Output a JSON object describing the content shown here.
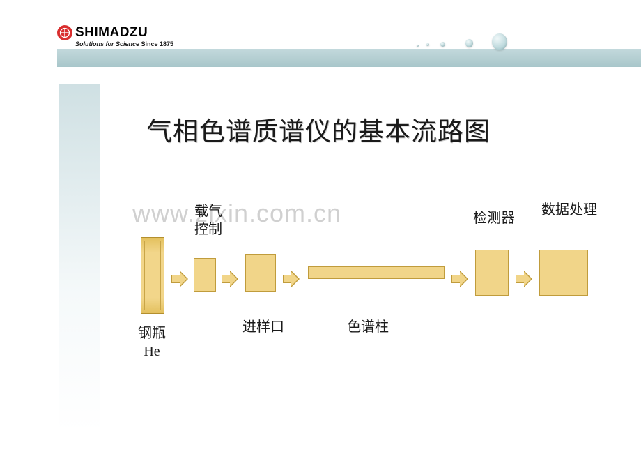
{
  "header": {
    "brand": "SHIMADZU",
    "tagline_prefix": "Solutions for Science",
    "tagline_since": " Since 1875",
    "stripe_color": "#b2ced2"
  },
  "title": "气相色谱质谱仪的基本流路图",
  "watermark": "www.zixin.com.cn",
  "flow": {
    "type": "flowchart",
    "block_fill": "#f1d589",
    "block_border": "#c09c3c",
    "nodes": [
      {
        "id": "cylinder",
        "label": "钢瓶\nHe",
        "label_pos": "below"
      },
      {
        "id": "carrier",
        "label": "载气\n控制",
        "label_pos": "above"
      },
      {
        "id": "inlet",
        "label": "进样口",
        "label_pos": "below"
      },
      {
        "id": "column",
        "label": "色谱柱",
        "label_pos": "below"
      },
      {
        "id": "detector",
        "label": "检测器",
        "label_pos": "above"
      },
      {
        "id": "data",
        "label": "数据处理",
        "label_pos": "above"
      }
    ],
    "label_fontsize": 20
  }
}
